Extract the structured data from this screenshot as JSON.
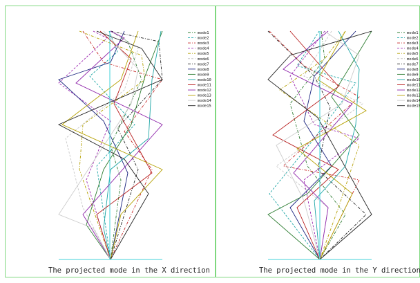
{
  "panels": [
    {
      "caption": "The projected mode in the X direction",
      "modes": [
        {
          "name": "mode1",
          "color": "#2e7d32",
          "pattern": "dashdot"
        },
        {
          "name": "mode2",
          "color": "#1ea6a6",
          "pattern": "dash"
        },
        {
          "name": "mode3",
          "color": "#c62828",
          "pattern": "dashdot"
        },
        {
          "name": "mode4",
          "color": "#9c27b0",
          "pattern": "dash"
        },
        {
          "name": "mode5",
          "color": "#b5a000",
          "pattern": "dashdot"
        },
        {
          "name": "mode6",
          "color": "#c8c8c8",
          "pattern": "dash"
        },
        {
          "name": "mode7",
          "color": "#222222",
          "pattern": "dashdot"
        },
        {
          "name": "mode8",
          "color": "#1a237e",
          "pattern": "solid"
        },
        {
          "name": "mode9",
          "color": "#2e7d32",
          "pattern": "solid"
        },
        {
          "name": "mode10",
          "color": "#1ea6a6",
          "pattern": "solid"
        },
        {
          "name": "mode11",
          "color": "#b71c1c",
          "pattern": "solid"
        },
        {
          "name": "mode12",
          "color": "#8e24aa",
          "pattern": "solid"
        },
        {
          "name": "mode13",
          "color": "#b5a000",
          "pattern": "solid"
        },
        {
          "name": "mode14",
          "color": "#cccccc",
          "pattern": "solid"
        },
        {
          "name": "mode15",
          "color": "#222222",
          "pattern": "solid"
        }
      ]
    },
    {
      "caption": "The projected mode in the Y direction",
      "modes": [
        {
          "name": "mode1",
          "color": "#2e7d32",
          "pattern": "dashdot"
        },
        {
          "name": "mode2",
          "color": "#1ea6a6",
          "pattern": "dash"
        },
        {
          "name": "mode3",
          "color": "#c62828",
          "pattern": "dashdot"
        },
        {
          "name": "mode4",
          "color": "#9c27b0",
          "pattern": "dash"
        },
        {
          "name": "mode5",
          "color": "#b5a000",
          "pattern": "dashdot"
        },
        {
          "name": "mode6",
          "color": "#c8c8c8",
          "pattern": "dash"
        },
        {
          "name": "mode7",
          "color": "#222222",
          "pattern": "dashdot"
        },
        {
          "name": "mode8",
          "color": "#1a237e",
          "pattern": "solid"
        },
        {
          "name": "mode9",
          "color": "#2e7d32",
          "pattern": "solid"
        },
        {
          "name": "mode10",
          "color": "#1ea6a6",
          "pattern": "solid"
        },
        {
          "name": "mode11",
          "color": "#b71c1c",
          "pattern": "solid"
        },
        {
          "name": "mode12",
          "color": "#8e24aa",
          "pattern": "solid"
        },
        {
          "name": "mode13",
          "color": "#b5a000",
          "pattern": "solid"
        },
        {
          "name": "mode14",
          "color": "#cccccc",
          "pattern": "solid"
        },
        {
          "name": "mode15",
          "color": "#222222",
          "pattern": "solid"
        }
      ]
    }
  ],
  "colors": {
    "frame": "#7ed87e",
    "axis": "#40d0d8",
    "background": "#ffffff"
  }
}
